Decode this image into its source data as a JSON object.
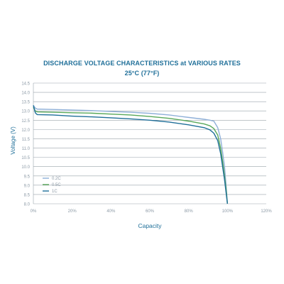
{
  "chart_data": {
    "type": "line",
    "title": "DISCHARGE VOLTAGE CHARACTERISTICS at VARIOUS RATES",
    "subtitle": "25°C (77°F)",
    "xlabel": "Capacity",
    "ylabel": "Voltage (V)",
    "xlim": [
      0,
      120
    ],
    "ylim": [
      8.0,
      14.5
    ],
    "grid": true,
    "legend_position": "bottom-left",
    "x_ticks": [
      {
        "value": 0,
        "label": "0%"
      },
      {
        "value": 20,
        "label": "20%"
      },
      {
        "value": 40,
        "label": "40%"
      },
      {
        "value": 60,
        "label": "60%"
      },
      {
        "value": 80,
        "label": "80%"
      },
      {
        "value": 100,
        "label": "100%"
      },
      {
        "value": 120,
        "label": "120%"
      }
    ],
    "y_ticks": [
      {
        "value": 8.0,
        "label": "8.0"
      },
      {
        "value": 8.5,
        "label": "8.5"
      },
      {
        "value": 9.0,
        "label": "9.0"
      },
      {
        "value": 9.5,
        "label": "9.5"
      },
      {
        "value": 10.0,
        "label": "10.0"
      },
      {
        "value": 10.5,
        "label": "10.5"
      },
      {
        "value": 11.0,
        "label": "11.0"
      },
      {
        "value": 11.5,
        "label": "11.5"
      },
      {
        "value": 12.0,
        "label": "12.0"
      },
      {
        "value": 12.5,
        "label": "12.5"
      },
      {
        "value": 13.0,
        "label": "13.0"
      },
      {
        "value": 13.5,
        "label": "13.5"
      },
      {
        "value": 14.0,
        "label": "14.0"
      },
      {
        "value": 14.5,
        "label": "14.5"
      }
    ],
    "series": [
      {
        "name": "0.2C",
        "color": "#8fb0d8",
        "points": [
          [
            0,
            13.3
          ],
          [
            1,
            13.15
          ],
          [
            2,
            13.1
          ],
          [
            10,
            13.08
          ],
          [
            20,
            13.05
          ],
          [
            30,
            13.02
          ],
          [
            40,
            12.97
          ],
          [
            50,
            12.93
          ],
          [
            60,
            12.87
          ],
          [
            70,
            12.78
          ],
          [
            80,
            12.65
          ],
          [
            88,
            12.55
          ],
          [
            91,
            12.5
          ],
          [
            93,
            12.45
          ],
          [
            95,
            12.1
          ],
          [
            96.5,
            11.5
          ],
          [
            97.5,
            10.8
          ],
          [
            98.5,
            10.0
          ],
          [
            99.3,
            9.0
          ],
          [
            100,
            8.0
          ]
        ]
      },
      {
        "name": "0.5C",
        "color": "#58a85a",
        "points": [
          [
            0,
            13.2
          ],
          [
            1,
            13.0
          ],
          [
            2,
            12.95
          ],
          [
            10,
            12.93
          ],
          [
            20,
            12.9
          ],
          [
            30,
            12.88
          ],
          [
            40,
            12.83
          ],
          [
            50,
            12.78
          ],
          [
            60,
            12.7
          ],
          [
            70,
            12.6
          ],
          [
            80,
            12.45
          ],
          [
            88,
            12.3
          ],
          [
            91,
            12.2
          ],
          [
            93,
            12.05
          ],
          [
            95,
            11.7
          ],
          [
            96.5,
            11.0
          ],
          [
            97.5,
            10.3
          ],
          [
            98.5,
            9.5
          ],
          [
            99.3,
            8.8
          ],
          [
            100,
            8.0
          ]
        ]
      },
      {
        "name": "1C",
        "color": "#1f6f99",
        "points": [
          [
            0,
            13.3
          ],
          [
            1,
            12.9
          ],
          [
            2,
            12.8
          ],
          [
            10,
            12.78
          ],
          [
            20,
            12.72
          ],
          [
            30,
            12.68
          ],
          [
            40,
            12.63
          ],
          [
            50,
            12.57
          ],
          [
            60,
            12.5
          ],
          [
            70,
            12.4
          ],
          [
            80,
            12.25
          ],
          [
            88,
            12.1
          ],
          [
            91,
            11.98
          ],
          [
            93,
            11.8
          ],
          [
            95,
            11.4
          ],
          [
            96.5,
            10.7
          ],
          [
            97.5,
            10.0
          ],
          [
            98.5,
            9.3
          ],
          [
            99.3,
            8.6
          ],
          [
            100,
            8.0
          ]
        ]
      }
    ]
  },
  "colors": {
    "title": "#1f6f99",
    "axis_text": "#8c9aa6",
    "grid": "#9aa3ab",
    "axis_label": "#1f6f99"
  }
}
